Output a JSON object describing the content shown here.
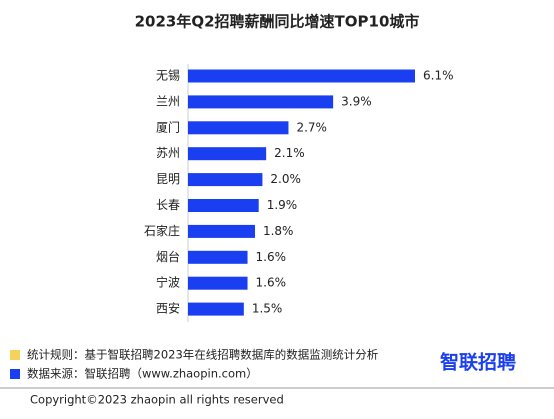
{
  "chart_data": {
    "type": "bar",
    "orientation": "horizontal",
    "title": "2023年Q2招聘薪酬同比增速TOP10城市",
    "categories": [
      "无锡",
      "兰州",
      "厦门",
      "苏州",
      "昆明",
      "长春",
      "石家庄",
      "烟台",
      "宁波",
      "西安"
    ],
    "values": [
      6.1,
      3.9,
      2.7,
      2.1,
      2.0,
      1.9,
      1.8,
      1.6,
      1.6,
      1.5
    ],
    "value_labels": [
      "6.1%",
      "3.9%",
      "2.7%",
      "2.1%",
      "2.0%",
      "1.9%",
      "1.8%",
      "1.6%",
      "1.6%",
      "1.5%"
    ],
    "color": "#1a3ff0"
  },
  "notes": [
    {
      "text": "统计规则：基于智联招聘2023年在线招聘数据库的数据监测统计分析",
      "color": "#f5d35a"
    },
    {
      "text": "数据来源：智联招聘（www.zhaopin.com）",
      "color": "#1a3ff0"
    }
  ],
  "logo": "智联招聘",
  "copyright": "Copyright©2023 zhaopin all rights reserved"
}
